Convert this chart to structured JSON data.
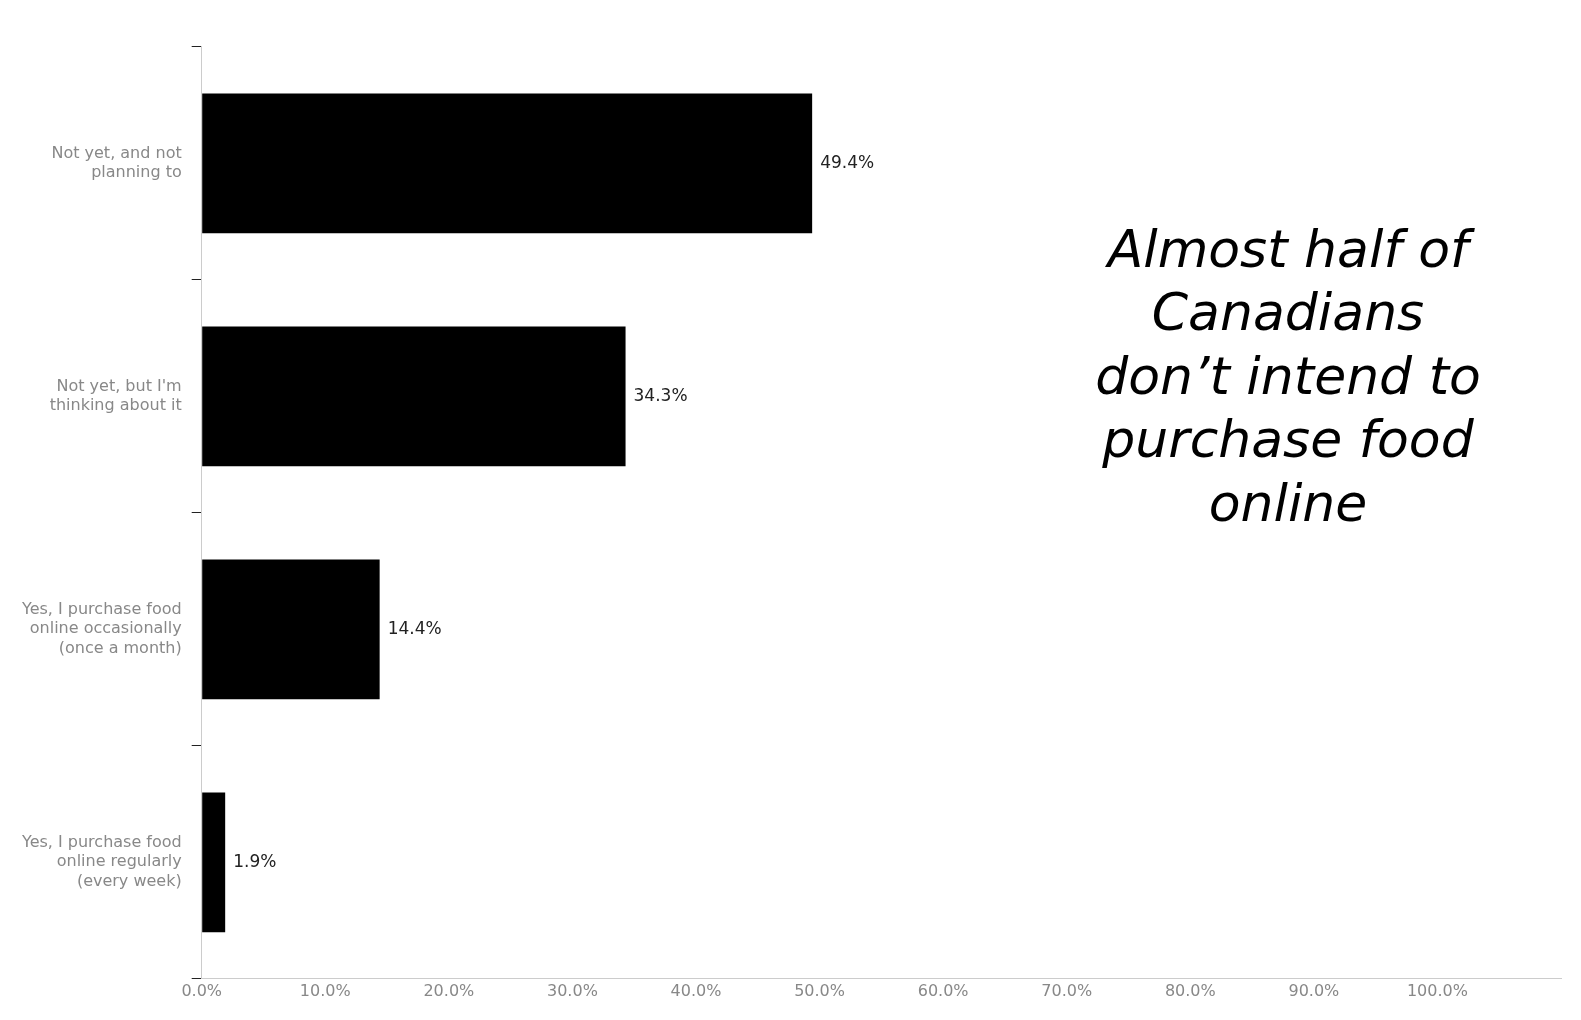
{
  "chart_data": {
    "type": "bar",
    "orientation": "horizontal",
    "categories": [
      "Not yet, and not planning to",
      "Not yet, but I'm thinking about it",
      "Yes, I purchase food online occasionally (once a month)",
      "Yes, I purchase food online regularly (every week)"
    ],
    "values": [
      49.4,
      34.3,
      14.4,
      1.9
    ],
    "value_labels": [
      "49.4%",
      "34.3%",
      "14.4%",
      "1.9%"
    ],
    "color": "#000000",
    "xlim": [
      0,
      110
    ],
    "xticks": [
      {
        "value": 0,
        "label": "0.0%"
      },
      {
        "value": 10,
        "label": "10.0%"
      },
      {
        "value": 20,
        "label": "20.0%"
      },
      {
        "value": 30,
        "label": "30.0%"
      },
      {
        "value": 40,
        "label": "40.0%"
      },
      {
        "value": 50,
        "label": "50.0%"
      },
      {
        "value": 60,
        "label": "60.0%"
      },
      {
        "value": 70,
        "label": "70.0%"
      },
      {
        "value": 80,
        "label": "80.0%"
      },
      {
        "value": 90,
        "label": "90.0%"
      },
      {
        "value": 100,
        "label": "100.0%"
      }
    ],
    "grid": false,
    "legend": false,
    "annotations": [
      "Almost half of Canadians don’t intend to purchase food online"
    ]
  }
}
